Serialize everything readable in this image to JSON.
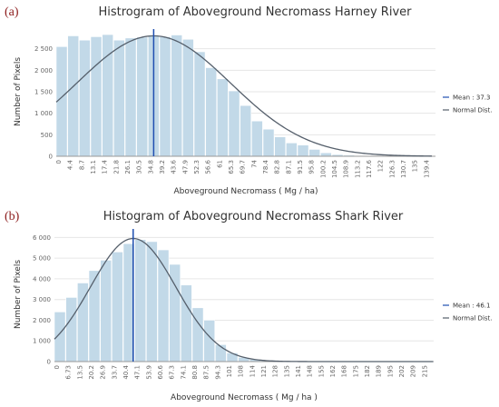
{
  "chart_data": [
    {
      "type": "bar",
      "panel_label": "(a)",
      "title": "Histrogram of Aboveground Necromass Harney River",
      "xlabel": "Aboveground Necromass ( Mg / ha)",
      "ylabel": "Number of Pixels",
      "ylim": [
        0,
        3000
      ],
      "yticks": [
        0,
        500,
        1000,
        1500,
        2000,
        2500
      ],
      "ytick_labels": [
        "0",
        "500",
        "1 000",
        "1 500",
        "2 000",
        "2 500"
      ],
      "categories": [
        "0",
        "4.4",
        "8.7",
        "13.1",
        "17.4",
        "21.8",
        "26.1",
        "30.5",
        "34.8",
        "39.2",
        "43.6",
        "47.9",
        "52.3",
        "56.6",
        "61",
        "65.3",
        "69.7",
        "74",
        "78.4",
        "82.8",
        "87.1",
        "91.5",
        "95.8",
        "100.2",
        "104.5",
        "108.9",
        "113.2",
        "117.6",
        "122",
        "126.3",
        "130.7",
        "135",
        "139.4"
      ],
      "values": [
        2550,
        2800,
        2700,
        2780,
        2830,
        2700,
        2750,
        2770,
        2800,
        2780,
        2820,
        2720,
        2430,
        2060,
        1800,
        1520,
        1180,
        820,
        630,
        450,
        310,
        260,
        160,
        80,
        40,
        25,
        15,
        10,
        8,
        5,
        4,
        3,
        2
      ],
      "series": [
        {
          "name": "Mean : 37.3",
          "value": 37.3,
          "color": "#1f4fb0"
        },
        {
          "name": "Normal Dist.",
          "color": "#555f6b",
          "curve": {
            "mean": 37.3,
            "sd": 29.5,
            "peak": 2800
          }
        }
      ],
      "bar_color": "#c2d9e8",
      "legend_position": "right",
      "grid": true
    },
    {
      "type": "bar",
      "panel_label": "(b)",
      "title": "Histogram of Aboveground Necromass Shark River",
      "xlabel": "Aboveground Necromass ( Mg / ha )",
      "ylabel": "Number of Pixels",
      "ylim": [
        0,
        6500
      ],
      "yticks": [
        0,
        1000,
        2000,
        3000,
        4000,
        5000,
        6000
      ],
      "ytick_labels": [
        "0",
        "1 000",
        "2 000",
        "3 000",
        "4 000",
        "5 000",
        "6 000"
      ],
      "categories": [
        "0",
        "6.73",
        "13.5",
        "20.2",
        "26.9",
        "33.7",
        "40.4",
        "47.1",
        "53.9",
        "60.6",
        "67.3",
        "74.1",
        "80.8",
        "87.5",
        "94.3",
        "101",
        "108",
        "114",
        "121",
        "128",
        "135",
        "141",
        "148",
        "155",
        "162",
        "168",
        "175",
        "182",
        "189",
        "195",
        "202",
        "209",
        "215"
      ],
      "values": [
        2400,
        3100,
        3800,
        4400,
        4900,
        5300,
        5700,
        5900,
        5800,
        5400,
        4700,
        3700,
        2600,
        2000,
        820,
        420,
        200,
        100,
        60,
        40,
        25,
        15,
        10,
        7,
        5,
        4,
        3,
        2,
        2,
        1,
        1,
        1,
        1
      ],
      "series": [
        {
          "name": "Mean : 46.1",
          "value": 46.1,
          "color": "#1f4fb0"
        },
        {
          "name": "Normal Dist.",
          "color": "#555f6b",
          "curve": {
            "mean": 46.1,
            "sd": 25.0,
            "peak": 5950
          }
        }
      ],
      "bar_color": "#c2d9e8",
      "legend_position": "right",
      "grid": true
    }
  ]
}
